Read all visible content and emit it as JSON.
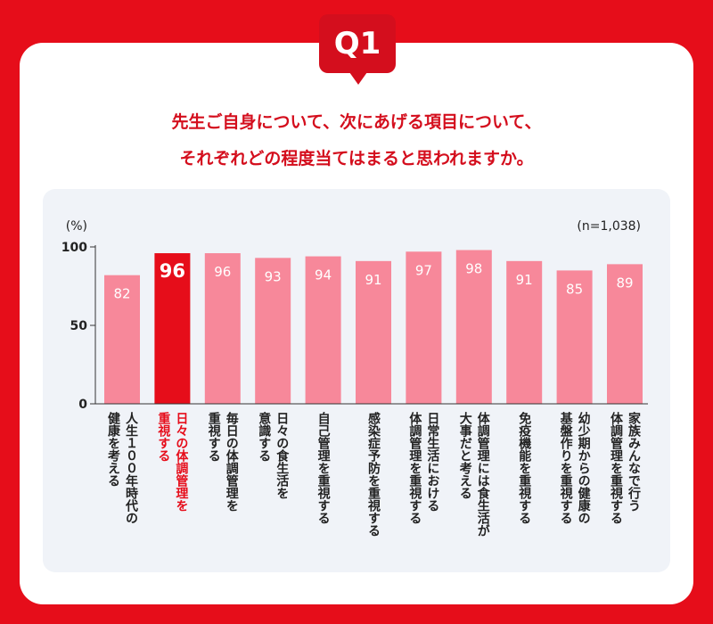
{
  "question": {
    "badge": "Q1",
    "line1": "先生ご自身について、次にあげる項目について、",
    "line2": "それぞれどの程度当てはまると思われますか。"
  },
  "colors": {
    "background": "#e60d1a",
    "bar": "#f7889a",
    "bar_highlight": "#e60d1a",
    "label_highlight": "#e60d1a"
  },
  "chart_data": {
    "type": "bar",
    "ylabel": "(%)",
    "note": "(n=1,038)",
    "ylim": [
      0,
      100
    ],
    "yticks": [
      0,
      50,
      100
    ],
    "grid": false,
    "categories": [
      "人生１００年時代の\n健康を考える",
      "日々の体調管理を\n重視する",
      "毎日の体調管理を\n重視する",
      "日々の食生活を\n意識する",
      "自己管理を重視する",
      "感染症予防を重視する",
      "日常生活における\n体調管理を重視する",
      "体調管理には食生活が\n大事だと考える",
      "免疫機能を重視する",
      "幼少期からの健康の\n基盤作りを重視する",
      "家族みんなで行う\n体調管理を重視する"
    ],
    "values": [
      82,
      96,
      96,
      93,
      94,
      91,
      97,
      98,
      91,
      85,
      89
    ],
    "value_labels": [
      "82",
      "96",
      "96",
      "93",
      "94",
      "91",
      "97",
      "98",
      "91",
      "85",
      "89"
    ],
    "highlight_index": 1
  }
}
